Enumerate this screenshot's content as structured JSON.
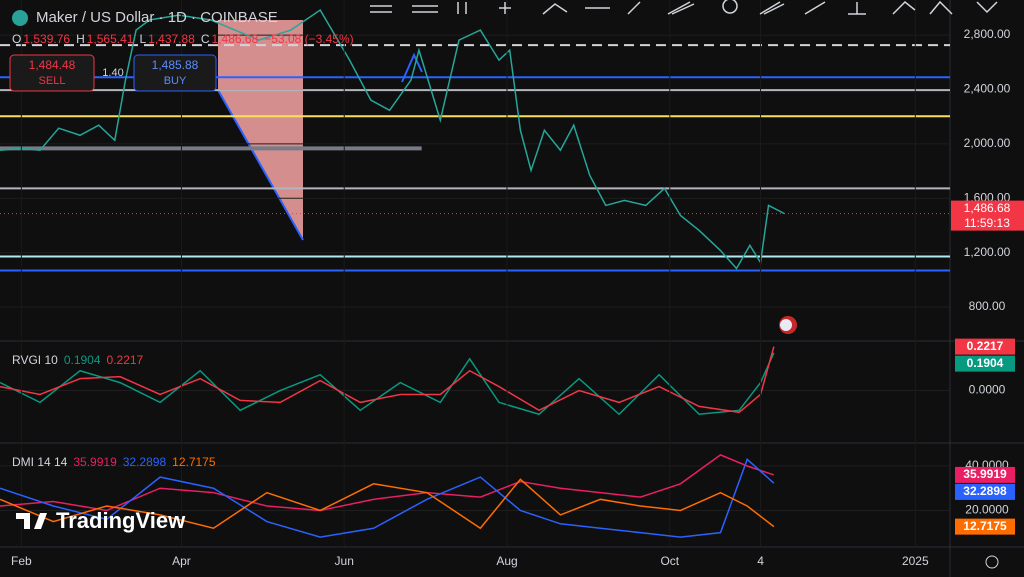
{
  "header": {
    "symbol": "Maker / US Dollar · 1D · COINBASE",
    "ohlc": [
      {
        "key": "O",
        "value": "1,539.76"
      },
      {
        "key": "H",
        "value": "1,565.41"
      },
      {
        "key": "L",
        "value": "1,437.88"
      },
      {
        "key": "C",
        "value": "1,486.68"
      }
    ],
    "change": "−53.08 (−3.45%)"
  },
  "trade": {
    "sell_price": "1,484.48",
    "sell": "SELL",
    "spread": "1.40",
    "buy_price": "1,485.88",
    "buy": "BUY"
  },
  "logo": "TradingView",
  "chart_data": [
    {
      "type": "line",
      "x": [
        0,
        8,
        15,
        22,
        30,
        37,
        43,
        47,
        51,
        56,
        67,
        79,
        97,
        109,
        120,
        131,
        139,
        146,
        154,
        157,
        165,
        172,
        180,
        187,
        191,
        195,
        199,
        204,
        210,
        215,
        221,
        227,
        234,
        242,
        249,
        255,
        262,
        270,
        276,
        281,
        285,
        288,
        294
      ],
      "series": [
        {
          "color": "#26a69a",
          "values": [
            1953,
            1967,
            1953,
            2115,
            2063,
            2137,
            2026,
            2468,
            2837,
            2911,
            2947,
            2911,
            2763,
            2837,
            2984,
            2616,
            2321,
            2247,
            2468,
            2689,
            2174,
            2763,
            2837,
            2616,
            2689,
            2100,
            1805,
            2100,
            1953,
            2137,
            1768,
            1547,
            1584,
            1547,
            1672,
            1473,
            1363,
            1215,
            1083,
            1253,
            1127,
            1547,
            1486.68
          ]
        }
      ],
      "xlim": [
        0,
        356
      ],
      "ylim": [
        557,
        3058
      ],
      "yticks": [
        {
          "value": 800,
          "label": "800.00"
        },
        {
          "value": 1200,
          "label": "1,200.00"
        },
        {
          "value": 1600,
          "label": "1,600.00"
        },
        {
          "value": 2000,
          "label": "2,000.00"
        },
        {
          "value": 2400,
          "label": "2,400.00"
        },
        {
          "value": 2800,
          "label": "2,800.00"
        }
      ],
      "levels": [
        {
          "value": 2726,
          "color": "#d1d4dc",
          "style": "dashed"
        },
        {
          "value": 2490,
          "color": "#2962ff"
        },
        {
          "value": 2395,
          "color": "#b2b5be"
        },
        {
          "value": 2203,
          "color": "#f7e15c"
        },
        {
          "value": 1967,
          "color": "#787b86",
          "to": 158
        },
        {
          "value": 1672,
          "color": "#b2b5be"
        },
        {
          "value": 1171,
          "color": "#b2ebf2"
        },
        {
          "value": 1068,
          "color": "#2962ff"
        }
      ],
      "price_tag": {
        "value": 1486.68,
        "label": "1,486.68",
        "timer": "11:59:13",
        "color": "#f23645"
      }
    },
    {
      "type": "line",
      "title": "RVGI 10",
      "x": [
        0,
        15,
        30,
        45,
        60,
        75,
        90,
        105,
        120,
        135,
        150,
        165,
        176,
        187,
        202,
        217,
        232,
        247,
        262,
        277,
        285,
        290
      ],
      "series": [
        {
          "color": "#089981",
          "values": [
            0.04,
            -0.06,
            0.1,
            0.04,
            -0.06,
            0.1,
            -0.1,
            0,
            0.08,
            -0.1,
            0.04,
            -0.06,
            0.16,
            -0.06,
            -0.12,
            0.06,
            -0.12,
            0.08,
            -0.12,
            -0.1,
            0.04,
            0.1904
          ]
        },
        {
          "color": "#f23645",
          "values": [
            0.02,
            -0.02,
            0.06,
            0.07,
            -0.02,
            0.06,
            -0.05,
            -0.06,
            0.05,
            -0.06,
            -0.02,
            -0.02,
            0.1,
            0.02,
            -0.1,
            0,
            -0.06,
            0.02,
            -0.08,
            -0.11,
            -0.02,
            0.2217
          ]
        }
      ],
      "xlim": [
        0,
        356
      ],
      "ylim": [
        -0.26,
        0.24
      ],
      "yticks": [
        {
          "value": 0,
          "label": "0.0000"
        }
      ]
    },
    {
      "type": "line",
      "title": "DMI 14 14",
      "x": [
        0,
        20,
        40,
        60,
        80,
        100,
        120,
        140,
        160,
        180,
        195,
        210,
        225,
        240,
        255,
        270,
        280,
        290
      ],
      "series": [
        {
          "color": "#e91e63",
          "values": [
            22,
            24,
            20,
            30,
            28,
            22,
            20,
            25,
            28,
            26,
            33,
            30,
            28,
            26,
            32,
            45,
            40,
            35.9919
          ]
        },
        {
          "color": "#2962ff",
          "values": [
            30,
            22,
            16,
            35,
            30,
            15,
            8,
            12,
            25,
            35,
            20,
            14,
            12,
            10,
            8,
            10,
            43,
            32.2898
          ]
        },
        {
          "color": "#ff6d00",
          "values": [
            25,
            15,
            22,
            18,
            12,
            28,
            20,
            32,
            28,
            12,
            34,
            18,
            25,
            22,
            20,
            28,
            22,
            12.7175
          ]
        }
      ],
      "xlim": [
        0,
        356
      ],
      "ylim": [
        4,
        49
      ],
      "yticks": [
        {
          "value": 20,
          "label": "20.0000"
        },
        {
          "value": 40,
          "label": "40.0000"
        }
      ],
      "xticks": [
        {
          "value": 8,
          "label": "Feb"
        },
        {
          "value": 68,
          "label": "Apr"
        },
        {
          "value": 129,
          "label": "Jun"
        },
        {
          "value": 190,
          "label": "Aug"
        },
        {
          "value": 251,
          "label": "Oct"
        },
        {
          "value": 285,
          "label": "4"
        },
        {
          "value": 343,
          "label": "2025"
        }
      ]
    }
  ]
}
